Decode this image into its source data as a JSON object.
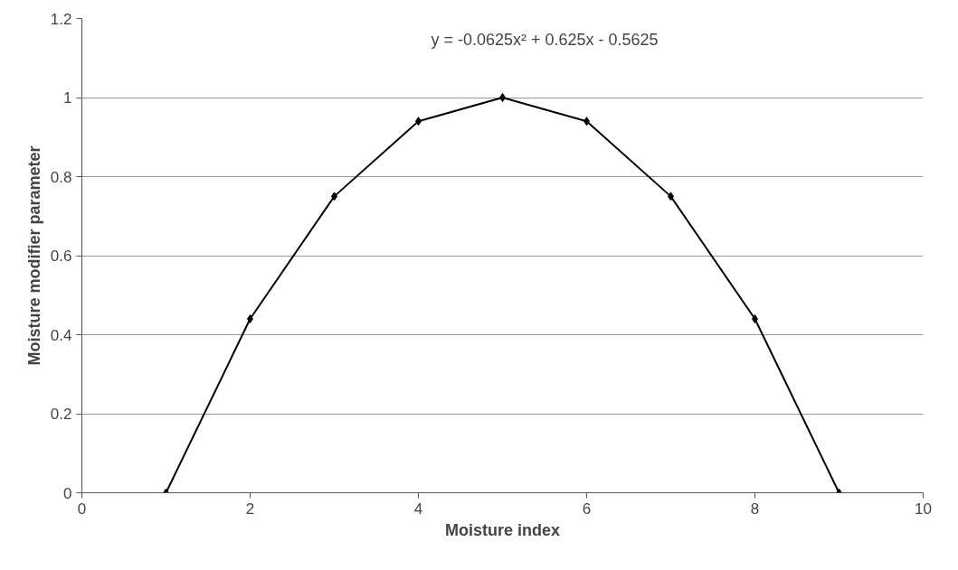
{
  "chart_data": {
    "type": "line",
    "xlabel": "Moisture index",
    "ylabel": "Moisture modifier parameter",
    "x": [
      1,
      2,
      3,
      4,
      5,
      6,
      7,
      8,
      9
    ],
    "series": [
      {
        "color": "#000000",
        "values": [
          0,
          0.44,
          0.75,
          0.94,
          1,
          0.94,
          0.75,
          0.44,
          0
        ]
      }
    ],
    "xlim": [
      0,
      10
    ],
    "xticks": [
      0,
      2,
      4,
      6,
      8,
      10
    ],
    "ylim": [
      0,
      1.2
    ],
    "yticks": [
      0,
      0.2,
      0.4,
      0.6,
      0.8,
      1,
      1.2
    ],
    "grid": "y",
    "marker": "diamond",
    "line_style": "solid",
    "annotations": [
      "y = -0.0625x² + 0.625x - 0.5625"
    ]
  }
}
